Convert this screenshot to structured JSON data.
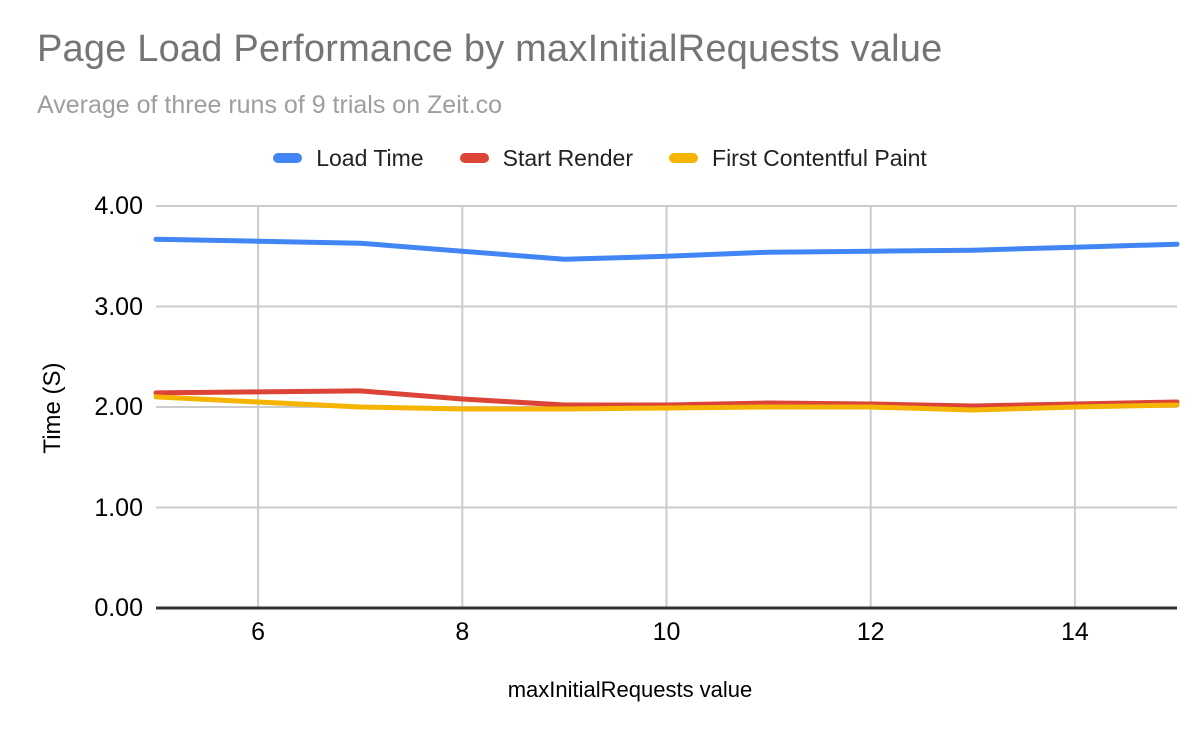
{
  "chart_data": {
    "type": "line",
    "title": "Page Load Performance by maxInitialRequests value",
    "subtitle": "Average of three runs of 9 trials on Zeit.co",
    "xlabel": "maxInitialRequests value",
    "ylabel": "Time (S)",
    "x": [
      5,
      6,
      7,
      8,
      9,
      10,
      11,
      12,
      13,
      14,
      15
    ],
    "series": [
      {
        "name": "Load Time",
        "color": "#4285F4",
        "values": [
          3.67,
          3.65,
          3.63,
          3.55,
          3.47,
          3.5,
          3.54,
          3.55,
          3.56,
          3.59,
          3.62
        ]
      },
      {
        "name": "Start Render",
        "color": "#DB4437",
        "values": [
          2.14,
          2.15,
          2.16,
          2.08,
          2.02,
          2.02,
          2.04,
          2.03,
          2.01,
          2.03,
          2.05
        ]
      },
      {
        "name": "First Contentful Paint",
        "color": "#F4B400",
        "values": [
          2.1,
          2.05,
          2.0,
          1.98,
          1.98,
          1.99,
          2.0,
          2.0,
          1.97,
          2.0,
          2.02
        ]
      }
    ],
    "xlim": [
      5,
      15
    ],
    "ylim": [
      0,
      4
    ],
    "x_ticks": [
      {
        "v": 6,
        "label": "6"
      },
      {
        "v": 8,
        "label": "8"
      },
      {
        "v": 10,
        "label": "10"
      },
      {
        "v": 12,
        "label": "12"
      },
      {
        "v": 14,
        "label": "14"
      }
    ],
    "y_ticks": [
      {
        "v": 0,
        "label": "0.00"
      },
      {
        "v": 1,
        "label": "1.00"
      },
      {
        "v": 2,
        "label": "2.00"
      },
      {
        "v": 3,
        "label": "3.00"
      },
      {
        "v": 4,
        "label": "4.00"
      }
    ],
    "grid": true,
    "legend_position": "top",
    "colors": {
      "title": "#757575",
      "subtitle": "#9e9e9e",
      "legend_text": "#222222",
      "tick_text": "#000000",
      "axis_line": "#333333",
      "gridline": "#cccccc",
      "background": "#ffffff"
    }
  }
}
